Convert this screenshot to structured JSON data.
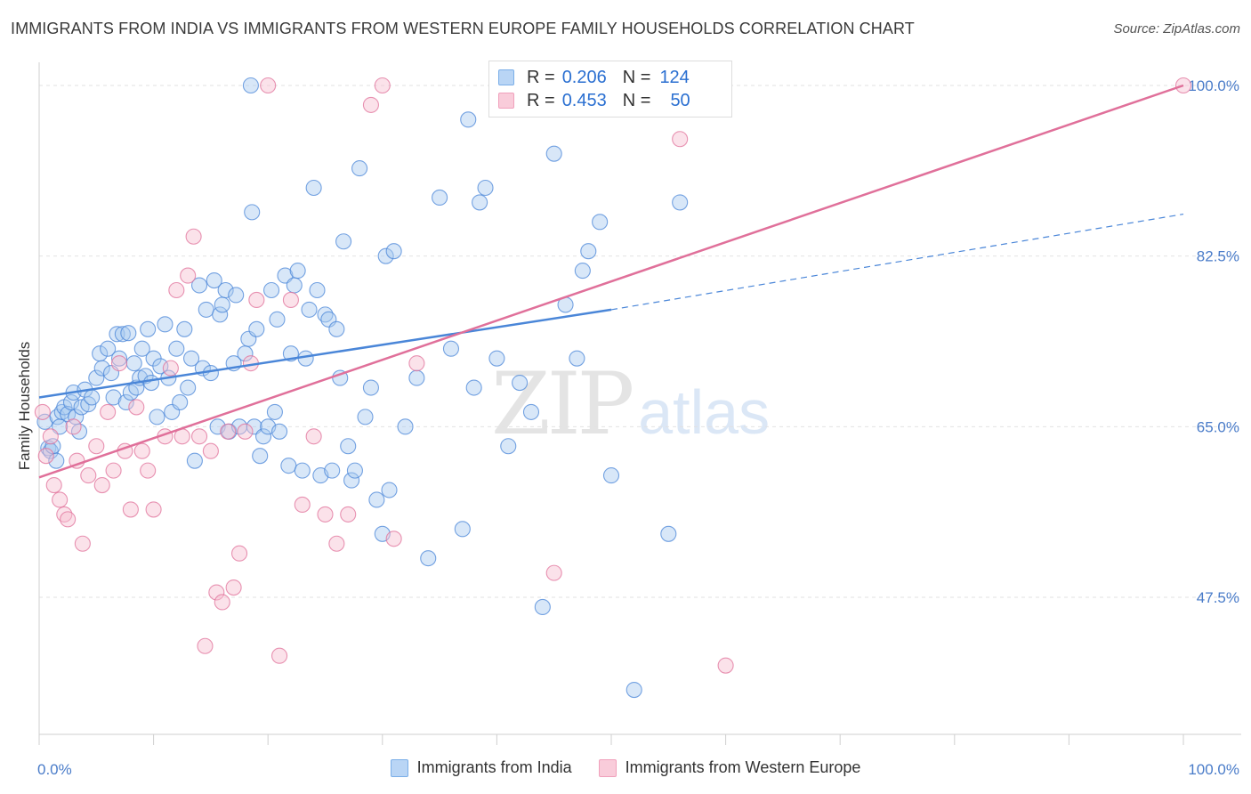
{
  "header": {
    "title": "IMMIGRANTS FROM INDIA VS IMMIGRANTS FROM WESTERN EUROPE FAMILY HOUSEHOLDS CORRELATION CHART",
    "source": "Source: ZipAtlas.com"
  },
  "watermark": {
    "zip": "ZIP",
    "atlas": "atlas"
  },
  "legend": {
    "rows": [
      {
        "r_label": "R =",
        "r_value": "0.206",
        "n_label": "N =",
        "n_value": "124",
        "color": "#7aaee8"
      },
      {
        "r_label": "R =",
        "r_value": "0.453",
        "n_label": "N =",
        "n_value": "50",
        "color": "#f0a0bb"
      }
    ]
  },
  "bottom_legend": {
    "items": [
      {
        "label": "Immigrants from India",
        "color": "#7aaee8"
      },
      {
        "label": "Immigrants from Western Europe",
        "color": "#f0a0bb"
      }
    ]
  },
  "chart_data": {
    "type": "scatter",
    "title": "IMMIGRANTS FROM INDIA VS IMMIGRANTS FROM WESTERN EUROPE FAMILY HOUSEHOLDS CORRELATION CHART",
    "xlabel": "",
    "ylabel": "Family Households",
    "xlim": [
      0,
      100
    ],
    "ylim": [
      35,
      102
    ],
    "x_tick_labels": [
      "0.0%",
      "100.0%"
    ],
    "y_ticks": [
      47.5,
      65.0,
      82.5,
      100.0
    ],
    "y_tick_labels": [
      "47.5%",
      "65.0%",
      "82.5%",
      "100.0%"
    ],
    "grid": true,
    "legend_position": "top-center",
    "series": [
      {
        "name": "Immigrants from India",
        "color": "#4a86d8",
        "fill": "#a9c9f0",
        "trend": {
          "x": [
            0,
            50
          ],
          "y": [
            68.0,
            77.0
          ],
          "dashed_extension": {
            "x": [
              50,
              100
            ],
            "y": [
              77.0,
              86.8
            ]
          }
        },
        "points": [
          [
            0.5,
            65.5
          ],
          [
            0.8,
            62.8
          ],
          [
            1.0,
            62.5
          ],
          [
            1.2,
            63.0
          ],
          [
            1.5,
            61.5
          ],
          [
            1.6,
            66.0
          ],
          [
            1.8,
            65.0
          ],
          [
            2.0,
            66.5
          ],
          [
            2.2,
            67.0
          ],
          [
            2.5,
            66.3
          ],
          [
            2.8,
            67.5
          ],
          [
            3.0,
            68.5
          ],
          [
            3.2,
            66.0
          ],
          [
            3.5,
            64.5
          ],
          [
            3.7,
            67.0
          ],
          [
            4.0,
            68.8
          ],
          [
            4.3,
            67.3
          ],
          [
            4.6,
            68.0
          ],
          [
            5.0,
            70.0
          ],
          [
            5.3,
            72.5
          ],
          [
            5.5,
            71.0
          ],
          [
            6.0,
            73.0
          ],
          [
            6.3,
            70.5
          ],
          [
            6.5,
            68.0
          ],
          [
            6.8,
            74.5
          ],
          [
            7.0,
            72.0
          ],
          [
            7.3,
            74.5
          ],
          [
            7.6,
            67.5
          ],
          [
            7.8,
            74.6
          ],
          [
            8.0,
            68.5
          ],
          [
            8.3,
            71.5
          ],
          [
            8.5,
            69.0
          ],
          [
            8.8,
            70.0
          ],
          [
            9.0,
            73.0
          ],
          [
            9.3,
            70.2
          ],
          [
            9.5,
            75.0
          ],
          [
            9.8,
            69.5
          ],
          [
            10.0,
            72.0
          ],
          [
            10.3,
            66.0
          ],
          [
            10.6,
            71.2
          ],
          [
            11.0,
            75.5
          ],
          [
            11.3,
            70.0
          ],
          [
            11.6,
            66.5
          ],
          [
            12.0,
            73.0
          ],
          [
            12.3,
            67.5
          ],
          [
            12.7,
            75.0
          ],
          [
            13.0,
            69.0
          ],
          [
            13.3,
            72.0
          ],
          [
            13.6,
            61.5
          ],
          [
            14.0,
            79.5
          ],
          [
            14.3,
            71.0
          ],
          [
            14.6,
            77.0
          ],
          [
            15.0,
            70.5
          ],
          [
            15.3,
            80.0
          ],
          [
            15.6,
            65.0
          ],
          [
            15.8,
            76.5
          ],
          [
            16.0,
            77.5
          ],
          [
            16.3,
            79.0
          ],
          [
            16.6,
            64.5
          ],
          [
            17.0,
            71.5
          ],
          [
            17.2,
            78.5
          ],
          [
            17.5,
            65.0
          ],
          [
            18.0,
            72.5
          ],
          [
            18.3,
            74.0
          ],
          [
            18.6,
            87.0
          ],
          [
            18.8,
            65.0
          ],
          [
            19.0,
            75.0
          ],
          [
            19.3,
            62.0
          ],
          [
            19.6,
            64.0
          ],
          [
            20.0,
            65.0
          ],
          [
            20.3,
            79.0
          ],
          [
            20.6,
            66.5
          ],
          [
            20.8,
            76.0
          ],
          [
            21.0,
            64.5
          ],
          [
            21.5,
            80.5
          ],
          [
            21.8,
            61.0
          ],
          [
            22.0,
            72.5
          ],
          [
            22.3,
            79.5
          ],
          [
            22.6,
            81.0
          ],
          [
            23.0,
            60.5
          ],
          [
            23.3,
            72.0
          ],
          [
            23.6,
            77.0
          ],
          [
            24.0,
            89.5
          ],
          [
            24.3,
            79.0
          ],
          [
            24.6,
            60.0
          ],
          [
            25.0,
            76.5
          ],
          [
            25.3,
            76.0
          ],
          [
            25.6,
            60.5
          ],
          [
            26.0,
            75.0
          ],
          [
            26.3,
            70.0
          ],
          [
            26.6,
            84.0
          ],
          [
            27.0,
            63.0
          ],
          [
            27.3,
            59.5
          ],
          [
            27.6,
            60.5
          ],
          [
            28.0,
            91.5
          ],
          [
            28.5,
            66.0
          ],
          [
            29.0,
            69.0
          ],
          [
            29.5,
            57.5
          ],
          [
            30.0,
            54.0
          ],
          [
            30.3,
            82.5
          ],
          [
            30.6,
            58.5
          ],
          [
            31.0,
            83.0
          ],
          [
            32.0,
            65.0
          ],
          [
            33.0,
            70.0
          ],
          [
            34.0,
            51.5
          ],
          [
            35.0,
            88.5
          ],
          [
            36.0,
            73.0
          ],
          [
            37.0,
            54.5
          ],
          [
            37.5,
            96.5
          ],
          [
            38.0,
            69.0
          ],
          [
            38.5,
            88.0
          ],
          [
            39.0,
            89.5
          ],
          [
            40.0,
            72.0
          ],
          [
            41.0,
            63.0
          ],
          [
            42.0,
            69.5
          ],
          [
            43.0,
            66.5
          ],
          [
            44.0,
            46.5
          ],
          [
            45.0,
            93.0
          ],
          [
            46.0,
            77.5
          ],
          [
            47.0,
            72.0
          ],
          [
            47.5,
            81.0
          ],
          [
            48.0,
            83.0
          ],
          [
            49.0,
            86.0
          ],
          [
            50.0,
            60.0
          ],
          [
            52.0,
            38.0
          ],
          [
            55.0,
            54.0
          ],
          [
            56.0,
            88.0
          ],
          [
            18.5,
            100.0
          ]
        ]
      },
      {
        "name": "Immigrants from Western Europe",
        "color": "#e0709a",
        "fill": "#f6bfd0",
        "trend": {
          "x": [
            0,
            100
          ],
          "y": [
            59.8,
            100.0
          ]
        },
        "points": [
          [
            0.3,
            66.5
          ],
          [
            0.6,
            62.0
          ],
          [
            1.0,
            64.0
          ],
          [
            1.3,
            59.0
          ],
          [
            1.8,
            57.5
          ],
          [
            2.2,
            56.0
          ],
          [
            2.5,
            55.5
          ],
          [
            3.0,
            65.0
          ],
          [
            3.3,
            61.5
          ],
          [
            3.8,
            53.0
          ],
          [
            4.3,
            60.0
          ],
          [
            5.0,
            63.0
          ],
          [
            5.5,
            59.0
          ],
          [
            6.0,
            66.5
          ],
          [
            6.5,
            60.5
          ],
          [
            7.0,
            71.5
          ],
          [
            7.5,
            62.5
          ],
          [
            8.0,
            56.5
          ],
          [
            8.5,
            67.0
          ],
          [
            9.0,
            62.5
          ],
          [
            9.5,
            60.5
          ],
          [
            10.0,
            56.5
          ],
          [
            11.0,
            64.0
          ],
          [
            11.5,
            71.0
          ],
          [
            12.0,
            79.0
          ],
          [
            12.5,
            64.0
          ],
          [
            13.0,
            80.5
          ],
          [
            13.5,
            84.5
          ],
          [
            14.0,
            64.0
          ],
          [
            14.5,
            42.5
          ],
          [
            15.0,
            62.5
          ],
          [
            15.5,
            48.0
          ],
          [
            16.0,
            47.0
          ],
          [
            16.5,
            64.5
          ],
          [
            17.0,
            48.5
          ],
          [
            17.5,
            52.0
          ],
          [
            18.0,
            64.5
          ],
          [
            18.5,
            71.5
          ],
          [
            19.0,
            78.0
          ],
          [
            20.0,
            100.0
          ],
          [
            21.0,
            41.5
          ],
          [
            22.0,
            78.0
          ],
          [
            23.0,
            57.0
          ],
          [
            24.0,
            64.0
          ],
          [
            25.0,
            56.0
          ],
          [
            26.0,
            53.0
          ],
          [
            27.0,
            56.0
          ],
          [
            29.0,
            98.0
          ],
          [
            30.0,
            100.0
          ],
          [
            31.0,
            53.5
          ],
          [
            33.0,
            71.5
          ],
          [
            45.0,
            50.0
          ],
          [
            56.0,
            94.5
          ],
          [
            60.0,
            40.5
          ],
          [
            100.0,
            100.0
          ]
        ]
      }
    ]
  }
}
